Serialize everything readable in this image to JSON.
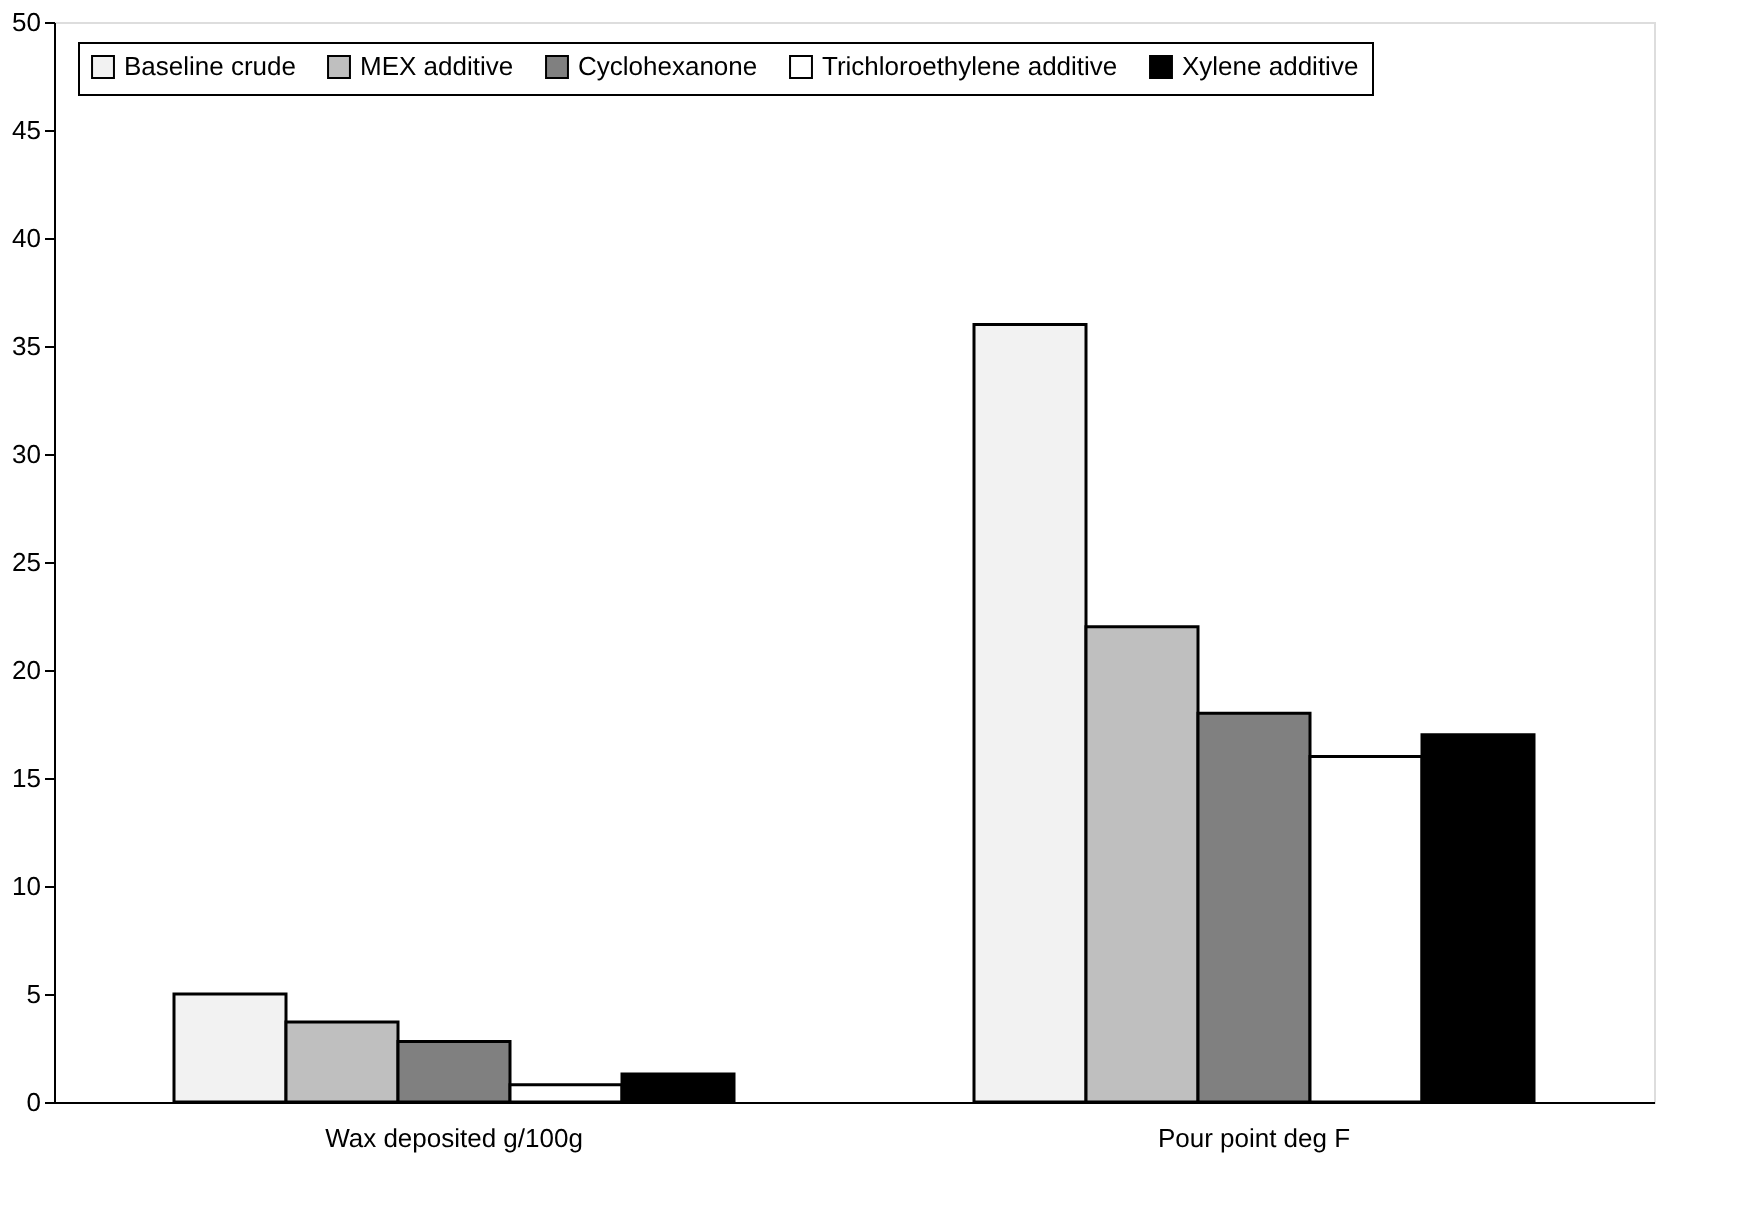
{
  "chart_data": {
    "type": "bar",
    "categories": [
      "Wax deposited g/100g",
      "Pour point deg F"
    ],
    "series": [
      {
        "name": "Baseline crude",
        "color": "#f2f2f2",
        "values": [
          5,
          36
        ]
      },
      {
        "name": "MEX additive",
        "color": "#bfbfbf",
        "values": [
          3.7,
          22
        ]
      },
      {
        "name": "Cyclohexanone",
        "color": "#808080",
        "values": [
          2.8,
          18
        ]
      },
      {
        "name": "Trichloroethylene additive",
        "color": "#ffffff",
        "values": [
          0.8,
          16
        ]
      },
      {
        "name": "Xylene additive",
        "color": "#000000",
        "values": [
          1.3,
          17
        ]
      }
    ],
    "ylim": [
      0,
      50
    ],
    "yticks": [
      0,
      5,
      10,
      15,
      20,
      25,
      30,
      35,
      40,
      45,
      50
    ],
    "grid": false,
    "legend": "top"
  }
}
